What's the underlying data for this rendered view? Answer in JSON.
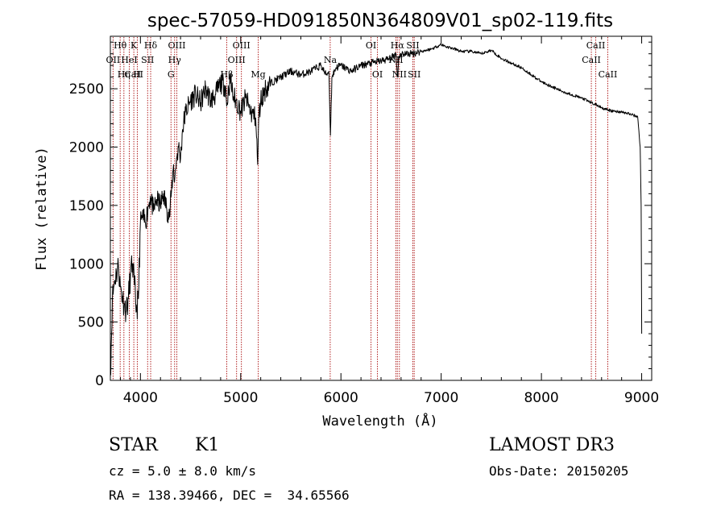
{
  "chart_data": {
    "type": "line",
    "title": "spec-57059-HD091850N364809V01_sp02-119.fits",
    "xlabel": "Wavelength (Å)",
    "ylabel": "Flux (relative)",
    "xlim": [
      3700,
      9100
    ],
    "ylim": [
      0,
      2950
    ],
    "xticks": [
      4000,
      5000,
      6000,
      7000,
      8000,
      9000
    ],
    "yticks": [
      0,
      500,
      1000,
      1500,
      2000,
      2500
    ],
    "series": [
      {
        "name": "flux",
        "x": [
          3700,
          3720,
          3740,
          3760,
          3780,
          3800,
          3820,
          3840,
          3860,
          3880,
          3900,
          3920,
          3940,
          3960,
          3980,
          4000,
          4020,
          4050,
          4080,
          4100,
          4130,
          4160,
          4200,
          4230,
          4260,
          4290,
          4310,
          4330,
          4340,
          4360,
          4380,
          4400,
          4420,
          4450,
          4500,
          4550,
          4600,
          4650,
          4700,
          4750,
          4800,
          4850,
          4860,
          4880,
          4900,
          4920,
          4950,
          4980,
          5000,
          5050,
          5100,
          5150,
          5170,
          5180,
          5200,
          5250,
          5300,
          5400,
          5500,
          5600,
          5700,
          5800,
          5850,
          5880,
          5895,
          5910,
          5950,
          6000,
          6100,
          6200,
          6300,
          6400,
          6500,
          6550,
          6562,
          6580,
          6600,
          6700,
          6800,
          6900,
          7000,
          7050,
          7100,
          7200,
          7300,
          7400,
          7500,
          7600,
          7700,
          7800,
          7900,
          8000,
          8100,
          8200,
          8300,
          8400,
          8450,
          8500,
          8550,
          8600,
          8650,
          8700,
          8800,
          8900,
          8960,
          8985,
          8995,
          9000
        ],
        "values": [
          40,
          700,
          850,
          920,
          980,
          800,
          720,
          650,
          600,
          700,
          900,
          1000,
          820,
          600,
          700,
          1350,
          1400,
          1350,
          1500,
          1580,
          1450,
          1550,
          1500,
          1600,
          1480,
          1400,
          1620,
          1850,
          1700,
          1900,
          2000,
          1900,
          2150,
          2300,
          2400,
          2450,
          2380,
          2500,
          2400,
          2450,
          2550,
          2520,
          2350,
          2500,
          2580,
          2450,
          2400,
          2350,
          2300,
          2420,
          2300,
          2250,
          1850,
          2250,
          2400,
          2500,
          2550,
          2600,
          2650,
          2620,
          2650,
          2700,
          2620,
          2650,
          2100,
          2600,
          2680,
          2700,
          2650,
          2700,
          2720,
          2740,
          2760,
          2800,
          2600,
          2780,
          2800,
          2800,
          2820,
          2840,
          2880,
          2860,
          2850,
          2820,
          2820,
          2800,
          2830,
          2760,
          2720,
          2680,
          2620,
          2560,
          2520,
          2480,
          2450,
          2420,
          2400,
          2380,
          2360,
          2340,
          2320,
          2310,
          2300,
          2280,
          2260,
          2000,
          1500,
          400
        ]
      }
    ],
    "spectral_lines": [
      {
        "name": "Hθ",
        "wavelength": 3798,
        "row": 0
      },
      {
        "name": "OII",
        "wavelength": 3727,
        "row": 1
      },
      {
        "name": "CaII",
        "wavelength": 3934,
        "row": 2
      },
      {
        "name": "K",
        "wavelength": 3934,
        "row": 0
      },
      {
        "name": "HeI",
        "wavelength": 3889,
        "row": 1
      },
      {
        "name": "Hη",
        "wavelength": 3835,
        "row": 2
      },
      {
        "name": "SII",
        "wavelength": 4072,
        "row": 1
      },
      {
        "name": "H",
        "wavelength": 3969,
        "row": 2
      },
      {
        "name": "Hδ",
        "wavelength": 4102,
        "row": 0
      },
      {
        "name": "OIII",
        "wavelength": 4363,
        "row": 0
      },
      {
        "name": "Hγ",
        "wavelength": 4341,
        "row": 1
      },
      {
        "name": "G",
        "wavelength": 4305,
        "row": 2
      },
      {
        "name": "OIII",
        "wavelength": 5007,
        "row": 0
      },
      {
        "name": "OIII",
        "wavelength": 4959,
        "row": 1
      },
      {
        "name": "Hβ",
        "wavelength": 4861,
        "row": 2
      },
      {
        "name": "Mg",
        "wavelength": 5175,
        "row": 2
      },
      {
        "name": "Na",
        "wavelength": 5893,
        "row": 1
      },
      {
        "name": "OI",
        "wavelength": 6300,
        "row": 0
      },
      {
        "name": "OI",
        "wavelength": 6364,
        "row": 2
      },
      {
        "name": "Hα",
        "wavelength": 6563,
        "row": 0
      },
      {
        "name": "SII",
        "wavelength": 6717,
        "row": 0
      },
      {
        "name": "NII",
        "wavelength": 6548,
        "row": 1
      },
      {
        "name": "NII",
        "wavelength": 6583,
        "row": 2
      },
      {
        "name": "SII",
        "wavelength": 6731,
        "row": 2
      },
      {
        "name": "CaII",
        "wavelength": 8542,
        "row": 0
      },
      {
        "name": "CaII",
        "wavelength": 8498,
        "row": 1
      },
      {
        "name": "CaII",
        "wavelength": 8662,
        "row": 2
      }
    ],
    "line_color": "#000000",
    "marker_color": "#b22222"
  },
  "info": {
    "object_class": "STAR",
    "subclass": "K1",
    "survey": "LAMOST DR3",
    "cz": "cz = 5.0 ± 8.0 km/s",
    "obs_date": "Obs-Date: 20150205",
    "coords": "RA = 138.39466, DEC =  34.65566"
  }
}
